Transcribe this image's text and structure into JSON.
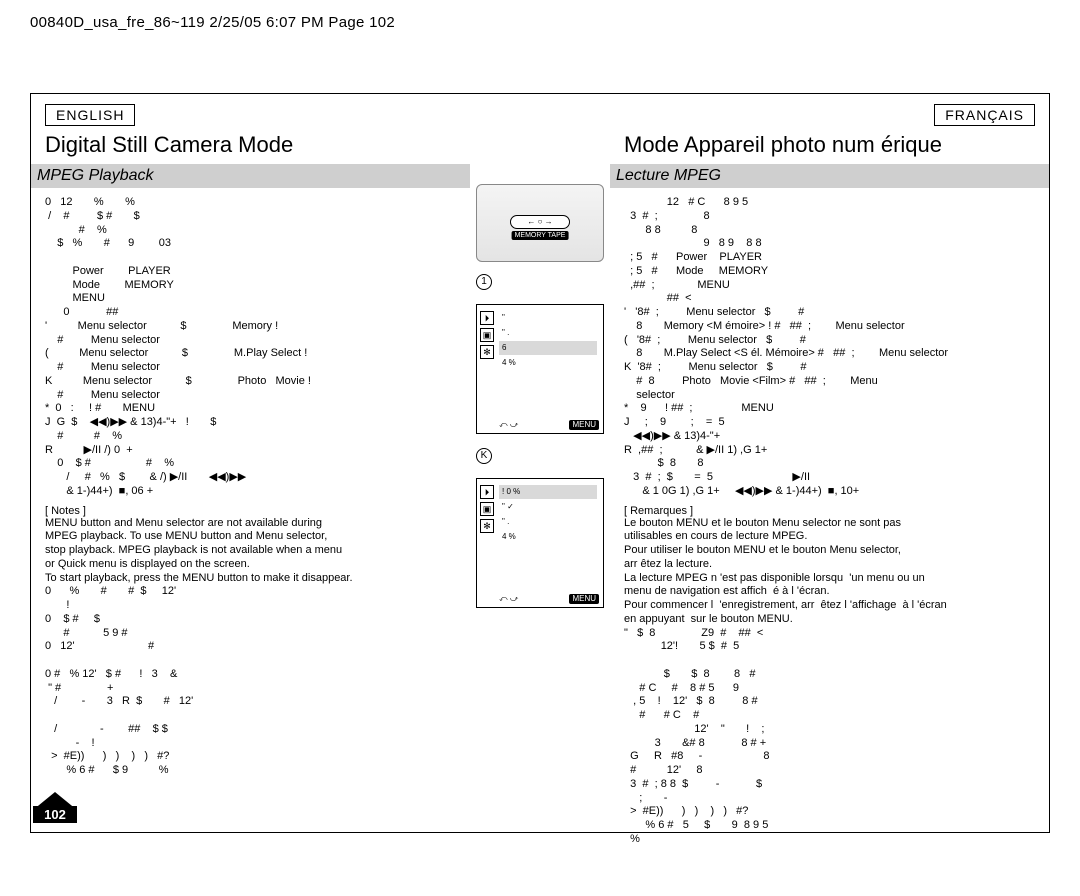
{
  "header": "00840D_usa_fre_86~119 2/25/05 6:07 PM Page 102",
  "page_number": "102",
  "left": {
    "lang": "ENGLISH",
    "title": "Digital Still Camera Mode",
    "subtitle": "MPEG Playback",
    "body": "0   12       %       %\n /    #         $ #       $\n           #    %\n    $   %       #      9        03\n\n         Power        PLAYER\n         Mode        MEMORY\n         MENU\n      0            ##\n'          Menu selector           $               Memory !\n    #         Menu selector\n(          Menu selector           $               M.Play Select !\n    #         Menu selector\nK          Menu selector           $               Photo   Movie !\n    #         Menu selector\n*  0   :     ! #       MENU\nJ  G  $    ◀◀)▶▶ & 13)4-\"+   !       $\n    #          #    %\nR          ▶/II /) 0  +\n    0    $ #                  #    %\n       /     #   %   $        & /) ▶/II       ◀◀)▶▶\n       & 1-)44+)  ■, 06 +",
    "notes_h": "[ Notes ]",
    "notes": "MENU button and Menu selector are not available during\nMPEG playback. To use MENU button and Menu selector,\nstop playback. MPEG playback is not available when a menu\nor Quick menu is displayed on the screen.\nTo start playback, press the MENU button to make it disappear.\n0      %       #       #  $     12'\n       !\n0    $ #     $\n      #           5 9 #\n0   12'                        #\n\n0 #   % 12'   $ #      !   3    &\n \" #               +\n   /        -       3   R  $       #   12'\n\n   /              -        ##    $ $\n          -    !\n  >  #E))      )   )    )   )   #?\n       % 6 #      $ 9          %"
  },
  "right": {
    "lang": "FRANÇAIS",
    "title": "Mode Appareil photo num   érique",
    "subtitle": "Lecture MPEG",
    "body": "              12   # C      8 9 5\n  3  #  ;               8\n       8 8          8\n                          9   8 9    8 8\n  ; 5   #      Power    PLAYER\n  ; 5   #      Mode     MEMORY\n  ,##  ;              MENU\n              ##  <\n'   '8#  ;         Menu selector   $         #\n    8       Memory <M émoire> ! #   ##  ;        Menu selector\n(   '8#  ;         Menu selector   $         #\n    8       M.Play Select <S él. Mémoire> #   ##  ;        Menu selector\nK  '8#  ;         Menu selector   $         #\n    #  8         Photo   Movie <Film> #   ##  ;        Menu\n    selector\n*    9      ! ##  ;                MENU\nJ     ;    9        ;    =  5\n   ◀◀)▶▶ & 13)4-\"+\nR  ,##  ;           & ▶/II 1) ,G 1+\n           $  8       8\n   3  #  ;  $       =  5                          ▶/II\n      & 1 0G 1) ,G 1+     ◀◀)▶▶ & 1-)44+)  ■, 10+",
    "notes_h": "[ Remarques ]",
    "notes": "Le bouton MENU et le bouton Menu selector ne sont pas\nutilisables en cours de lecture MPEG.\nPour utiliser le bouton MENU et le bouton Menu selector,\narr êtez la lecture.\nLa lecture MPEG n 'est pas disponible lorsqu  'un menu ou un\nmenu de navigation est affich  é à l 'écran.\nPour commencer l  'enregistrement, arr  êtez l 'affichage  à l 'écran\nen appuyant  sur le bouton MENU.\n\"   $  8               Z9  #    ##  <\n            12'!       5 $  #  5\n\n             $       $  8        8   #\n     # C     #    8 # 5      9\n   , 5    !    12'   $  8         8 #\n     #      # C    #\n                       12'    \"       !    ;\n          3       &# 8            8 # +\n  G     R   #8     -                    8\n  #          12'     8\n  3  #  ; 8 8  $         -            $\n     ;       -\n  >  #E))      )   )    )   )   #?\n       % 6 #   5     $       9  8 9 5\n  %"
  },
  "center": {
    "slider_label": "← ○ →",
    "mem_tape": "MEMORY  TAPE",
    "circle1": "1",
    "screen1_num": "6",
    "screen1_low": "4   %",
    "circleK": "K",
    "screen2_top": "! 0  %",
    "screen2_low": "4   %",
    "menu_btn": "MENU",
    "nav_icons": "⤺   ⤻"
  }
}
